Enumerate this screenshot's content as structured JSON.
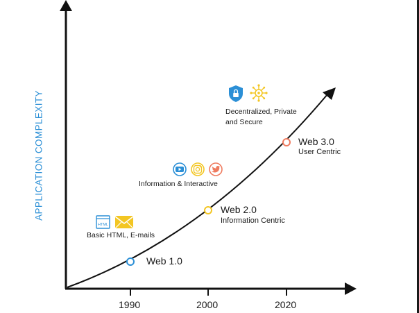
{
  "diagram": {
    "y_axis_label": "APPLICATION COMPLEXITY",
    "x_ticks": [
      "1990",
      "2000",
      "2020"
    ],
    "milestones": [
      {
        "title": "Web 1.0",
        "subtitle": "",
        "color": "#2b8fd6"
      },
      {
        "title": "Web 2.0",
        "subtitle": "Information Centric",
        "color": "#f3c623"
      },
      {
        "title": "Web 3.0",
        "subtitle": "User Centric",
        "color": "#ef7b5f"
      }
    ],
    "captions": {
      "web1": "Basic HTML, E-mails",
      "web2": "Information & Interactive",
      "web3_line1": "Decentralized, Private",
      "web3_line2": "and Secure"
    },
    "icons": {
      "web1": [
        "html-file-icon",
        "email-envelope-icon"
      ],
      "web2": [
        "youtube-icon",
        "instagram-icon",
        "twitter-icon"
      ],
      "web3": [
        "security-shield-icon",
        "blockchain-network-icon"
      ]
    },
    "colors": {
      "axis": "#111111",
      "label_blue": "#2b8fd6",
      "yellow": "#f3c623",
      "youtube": "#2b8fd6",
      "instagram": "#f3c623",
      "twitter": "#ef7b5f"
    }
  }
}
